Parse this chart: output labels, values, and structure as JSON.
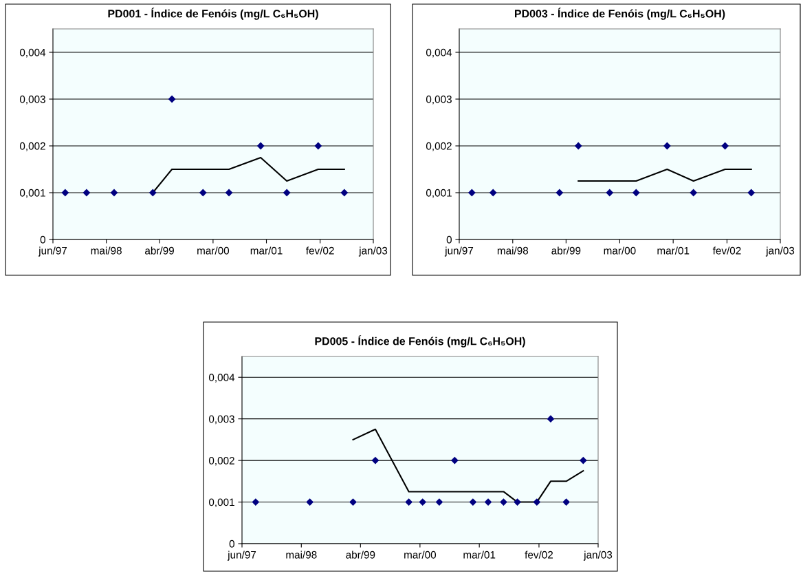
{
  "chart_data": [
    {
      "type": "scatter",
      "title": "PD001 - Índice de Fenóis (mg/L C₆H₅OH)",
      "grid": "y",
      "marker": "diamond",
      "xlim": [
        "1997-06-30",
        "2003-01-01"
      ],
      "xticks": [
        {
          "value": "1997-06-30",
          "label": "jun/97"
        },
        {
          "value": "1998-05-31",
          "label": "mai/98"
        },
        {
          "value": "1999-04-30",
          "label": "abr/99"
        },
        {
          "value": "2000-03-31",
          "label": "mar/00"
        },
        {
          "value": "2001-03-01",
          "label": "mar/01"
        },
        {
          "value": "2002-02-01",
          "label": "fev/02"
        },
        {
          "value": "2003-01-01",
          "label": "jan/03"
        }
      ],
      "ylim": [
        0,
        0.0045
      ],
      "yticks": [
        0,
        {
          "value": 0.001,
          "label": "0,001"
        },
        {
          "value": 0.002,
          "label": "0,002"
        },
        {
          "value": 0.003,
          "label": "0,003"
        },
        {
          "value": 0.004,
          "label": "0,004"
        }
      ],
      "series": [
        {
          "color": "#000080",
          "x": [
            "1997-09-15",
            "1998-01-27",
            "1998-07-19",
            "1999-03-19",
            "1999-07-17",
            "2000-01-28",
            "2000-07-09",
            "2001-01-24",
            "2001-07-07",
            "2002-01-20",
            "2002-07-03"
          ],
          "values": [
            0.001,
            0.001,
            0.001,
            0.001,
            0.003,
            0.001,
            0.001,
            0.002,
            0.001,
            0.002,
            0.001
          ]
        },
        {
          "type": "line",
          "color": "#000000",
          "marker": "none",
          "x": [
            "1999-03-19",
            "1999-07-17",
            "2000-01-28",
            "2000-07-09",
            "2001-01-24",
            "2001-07-07",
            "2002-01-20",
            "2002-07-03"
          ],
          "values": [
            0.001,
            0.0015,
            0.0015,
            0.0015,
            0.00175,
            0.00125,
            0.0015,
            0.0015
          ]
        }
      ]
    },
    {
      "type": "scatter",
      "title": "PD003 - Índice de Fenóis (mg/L C₆H₅OH)",
      "grid": "y",
      "marker": "diamond",
      "xlim": [
        "1997-06-30",
        "2003-01-01"
      ],
      "xticks": [
        {
          "value": "1997-06-30",
          "label": "jun/97"
        },
        {
          "value": "1998-05-31",
          "label": "mai/98"
        },
        {
          "value": "1999-04-30",
          "label": "abr/99"
        },
        {
          "value": "2000-03-31",
          "label": "mar/00"
        },
        {
          "value": "2001-03-01",
          "label": "mar/01"
        },
        {
          "value": "2002-02-01",
          "label": "fev/02"
        },
        {
          "value": "2003-01-01",
          "label": "jan/03"
        }
      ],
      "ylim": [
        0,
        0.0045
      ],
      "yticks": [
        0,
        {
          "value": 0.001,
          "label": "0,001"
        },
        {
          "value": 0.002,
          "label": "0,002"
        },
        {
          "value": 0.003,
          "label": "0,003"
        },
        {
          "value": 0.004,
          "label": "0,004"
        }
      ],
      "series": [
        {
          "color": "#000080",
          "x": [
            "1997-09-17",
            "1998-01-28",
            "1999-03-20",
            "1999-07-16",
            "2000-01-28",
            "2000-07-12",
            "2001-01-22",
            "2001-07-06",
            "2002-01-20",
            "2002-07-03"
          ],
          "values": [
            0.001,
            0.001,
            0.001,
            0.002,
            0.001,
            0.001,
            0.002,
            0.001,
            0.002,
            0.001
          ]
        },
        {
          "type": "line",
          "color": "#000000",
          "marker": "none",
          "x": [
            "1999-07-16",
            "2000-01-28",
            "2000-07-12",
            "2001-01-22",
            "2001-07-06",
            "2002-01-20",
            "2002-07-03"
          ],
          "values": [
            0.00125,
            0.00125,
            0.00125,
            0.0015,
            0.00125,
            0.0015,
            0.0015
          ]
        }
      ]
    },
    {
      "type": "scatter",
      "title": "PD005 - Índice de Fenóis (mg/L C₆H₅OH)",
      "grid": "y",
      "marker": "diamond",
      "xlim": [
        "1997-06-30",
        "2003-01-01"
      ],
      "xticks": [
        {
          "value": "1997-06-30",
          "label": "jun/97"
        },
        {
          "value": "1998-05-31",
          "label": "mai/98"
        },
        {
          "value": "1999-04-30",
          "label": "abr/99"
        },
        {
          "value": "2000-03-31",
          "label": "mar/00"
        },
        {
          "value": "2001-03-01",
          "label": "mar/01"
        },
        {
          "value": "2002-02-01",
          "label": "fev/02"
        },
        {
          "value": "2003-01-01",
          "label": "jan/03"
        }
      ],
      "ylim": [
        0,
        0.0045
      ],
      "yticks": [
        0,
        {
          "value": 0.001,
          "label": "0,001"
        },
        {
          "value": 0.002,
          "label": "0,002"
        },
        {
          "value": 0.003,
          "label": "0,003"
        },
        {
          "value": 0.004,
          "label": "0,004"
        }
      ],
      "series": [
        {
          "color": "#000080",
          "x": [
            "1997-09-15",
            "1998-07-18",
            "1999-03-19",
            "1999-07-23",
            "2000-01-28",
            "2000-04-15",
            "2000-07-18",
            "2000-10-13",
            "2001-01-24",
            "2001-04-20",
            "2001-07-16",
            "2001-10-02",
            "2002-01-20",
            "2002-04-08",
            "2002-07-05",
            "2002-10-09"
          ],
          "values": [
            0.001,
            0.001,
            0.001,
            0.002,
            0.001,
            0.001,
            0.001,
            0.002,
            0.001,
            0.001,
            0.001,
            0.001,
            0.001,
            0.003,
            0.001,
            0.002
          ]
        },
        {
          "type": "line",
          "color": "#000000",
          "marker": "none",
          "x": [
            "1999-03-19",
            "1999-07-23",
            "2000-01-28",
            "2000-04-15",
            "2000-07-18",
            "2000-10-13",
            "2001-01-24",
            "2001-04-20",
            "2001-07-16",
            "2001-10-02",
            "2002-01-20",
            "2002-04-08",
            "2002-07-05",
            "2002-10-09"
          ],
          "values": [
            0.0025,
            0.00275,
            0.00125,
            0.00125,
            0.00125,
            0.00125,
            0.00125,
            0.00125,
            0.00125,
            0.001,
            0.001,
            0.0015,
            0.0015,
            0.00175
          ]
        }
      ]
    }
  ]
}
